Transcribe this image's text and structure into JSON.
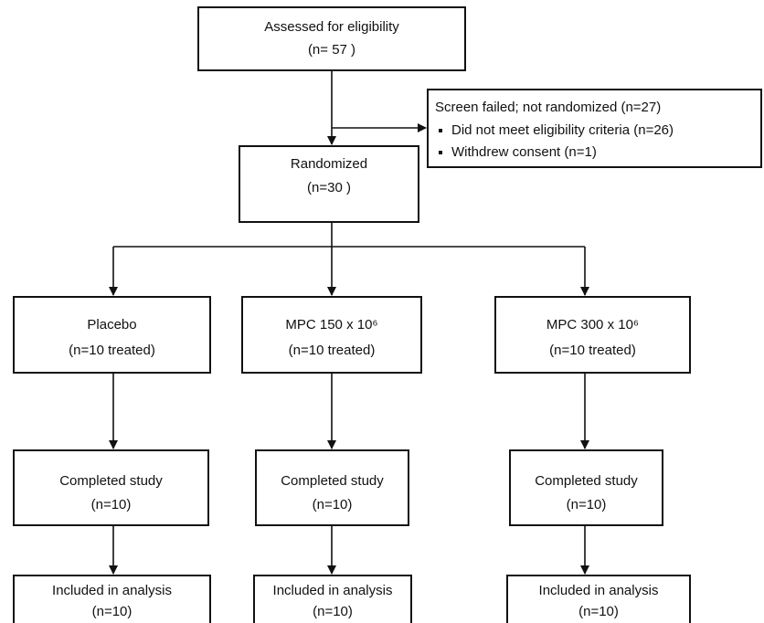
{
  "nodes": [
    {
      "lines": [
        "Assessed for eligibility",
        "(n= 57 )"
      ]
    },
    {
      "lines": [
        "Screen failed; not randomized   (n=27)",
        "Did not meet eligibility criteria (n=26)",
        "Withdrew consent (n=1)"
      ]
    },
    {
      "lines": [
        "Randomized",
        "(n=30  )"
      ]
    },
    {
      "lines": [
        "Placebo",
        "(n=10   treated)"
      ]
    },
    {
      "lines": [
        "MPC 150 x 10⁶",
        "(n=10  treated)"
      ]
    },
    {
      "lines": [
        "MPC 300 x 10⁶",
        "(n=10 treated)"
      ]
    },
    {
      "lines": [
        "Completed  study",
        "(n=10)"
      ]
    },
    {
      "lines": [
        "Completed study",
        "(n=10)"
      ]
    },
    {
      "lines": [
        "Completed  study",
        "(n=10)"
      ]
    },
    {
      "lines": [
        "Included in analysis",
        "(n=10)"
      ]
    },
    {
      "lines": [
        "Included in analysis",
        "(n=10)"
      ]
    },
    {
      "lines": [
        "Included in analysis",
        "(n=10)"
      ]
    }
  ]
}
